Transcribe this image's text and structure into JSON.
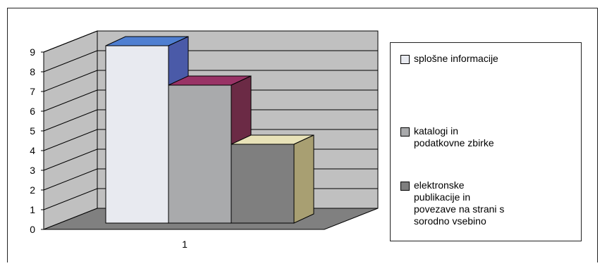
{
  "chart_data": {
    "type": "bar",
    "categories": [
      "1"
    ],
    "series": [
      {
        "name": "splošne informacije",
        "values": [
          9
        ],
        "color": "#e8eaf0",
        "top_color": "#4f7fd1",
        "side_color": "#4a5aa8"
      },
      {
        "name": "katalogi in\npodatkovne zbirke",
        "values": [
          7
        ],
        "color": "#a9aaac",
        "top_color": "#993366",
        "side_color": "#6b2a45"
      },
      {
        "name": "elektronske\npublikacije in\npovezave na strani s\nsorodno vsebino",
        "values": [
          4
        ],
        "color": "#7f7f7f",
        "top_color": "#e8e2b8",
        "side_color": "#a89f72"
      }
    ],
    "ylim": [
      0,
      9
    ],
    "yticks": [
      "0",
      "1",
      "2",
      "3",
      "4",
      "5",
      "6",
      "7",
      "8",
      "9"
    ],
    "grid": true,
    "legend_position": "right",
    "wall_color": "#c0c0c0",
    "floor_color": "#808080"
  }
}
